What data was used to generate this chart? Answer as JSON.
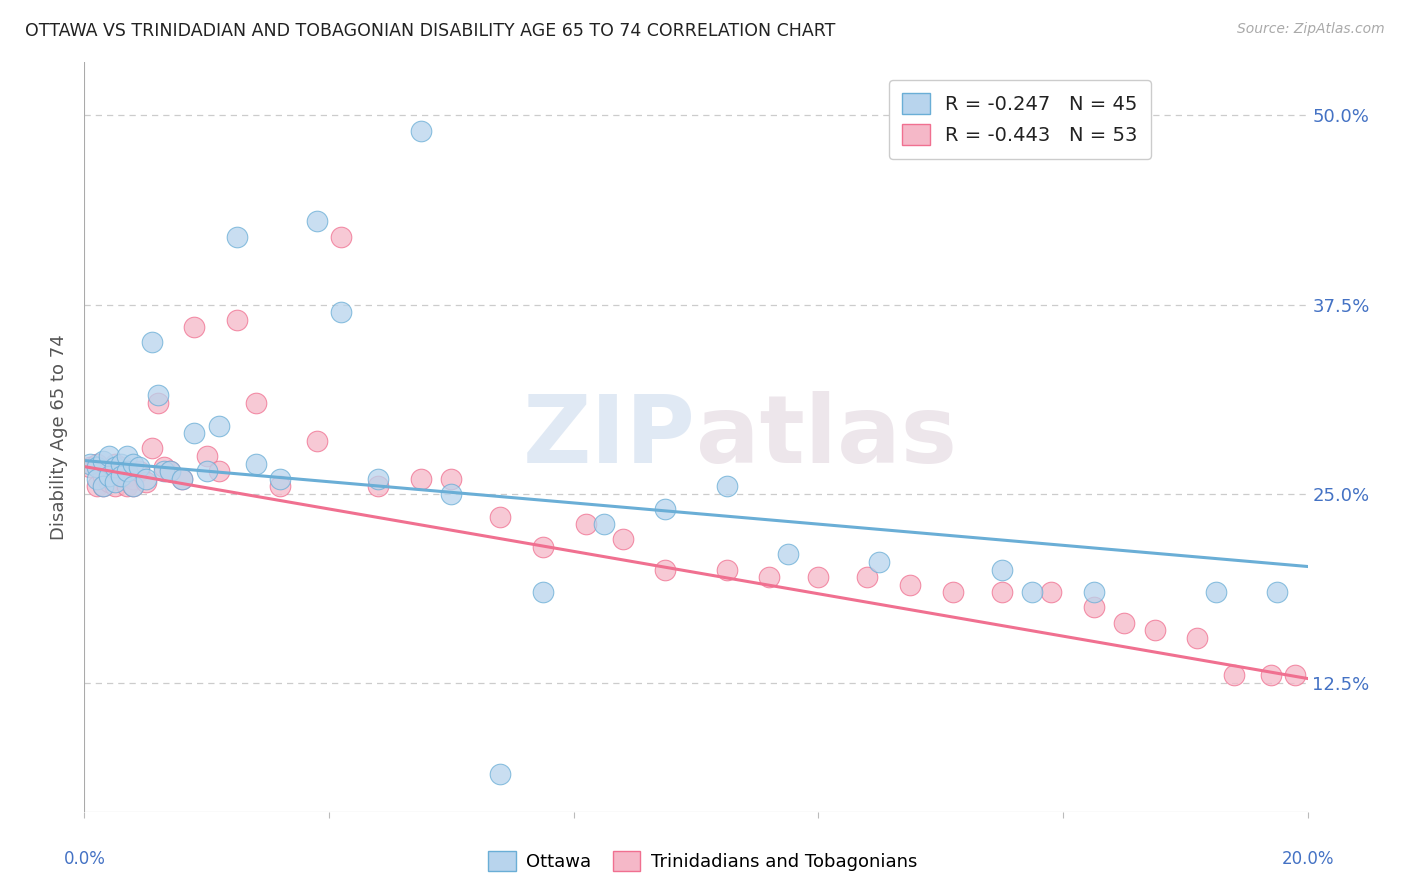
{
  "title": "OTTAWA VS TRINIDADIAN AND TOBAGONIAN DISABILITY AGE 65 TO 74 CORRELATION CHART",
  "source": "Source: ZipAtlas.com",
  "ylabel": "Disability Age 65 to 74",
  "ytick_values": [
    0.125,
    0.25,
    0.375,
    0.5
  ],
  "xmin": 0.0,
  "xmax": 0.2,
  "ymin": 0.04,
  "ymax": 0.535,
  "legend_label_blue": "R = -0.247   N = 45",
  "legend_label_pink": "R = -0.443   N = 53",
  "watermark_zip": "ZIP",
  "watermark_atlas": "atlas",
  "blue_color": "#6aaed6",
  "pink_color": "#f07090",
  "blue_fill": "#b8d4ed",
  "pink_fill": "#f5b8c8",
  "blue_line_x0": 0.0,
  "blue_line_x1": 0.2,
  "blue_line_y0": 0.272,
  "blue_line_y1": 0.202,
  "pink_line_x0": 0.0,
  "pink_line_x1": 0.2,
  "pink_line_y0": 0.268,
  "pink_line_y1": 0.128,
  "ottawa_x": [
    0.001,
    0.002,
    0.002,
    0.003,
    0.003,
    0.004,
    0.004,
    0.005,
    0.005,
    0.006,
    0.006,
    0.007,
    0.007,
    0.008,
    0.008,
    0.009,
    0.01,
    0.011,
    0.012,
    0.013,
    0.014,
    0.016,
    0.018,
    0.02,
    0.022,
    0.025,
    0.028,
    0.032,
    0.038,
    0.042,
    0.048,
    0.055,
    0.06,
    0.068,
    0.075,
    0.085,
    0.095,
    0.105,
    0.115,
    0.13,
    0.15,
    0.155,
    0.165,
    0.185,
    0.195
  ],
  "ottawa_y": [
    0.27,
    0.268,
    0.26,
    0.272,
    0.255,
    0.275,
    0.262,
    0.268,
    0.258,
    0.27,
    0.262,
    0.275,
    0.265,
    0.27,
    0.255,
    0.268,
    0.26,
    0.35,
    0.315,
    0.265,
    0.265,
    0.26,
    0.29,
    0.265,
    0.295,
    0.42,
    0.27,
    0.26,
    0.43,
    0.37,
    0.26,
    0.49,
    0.25,
    0.065,
    0.185,
    0.23,
    0.24,
    0.255,
    0.21,
    0.205,
    0.2,
    0.185,
    0.185,
    0.185,
    0.185
  ],
  "trini_x": [
    0.001,
    0.002,
    0.002,
    0.003,
    0.003,
    0.004,
    0.004,
    0.005,
    0.005,
    0.006,
    0.006,
    0.007,
    0.007,
    0.008,
    0.008,
    0.009,
    0.01,
    0.011,
    0.012,
    0.013,
    0.014,
    0.016,
    0.018,
    0.02,
    0.022,
    0.025,
    0.028,
    0.032,
    0.038,
    0.042,
    0.048,
    0.055,
    0.06,
    0.068,
    0.075,
    0.082,
    0.088,
    0.095,
    0.105,
    0.112,
    0.12,
    0.128,
    0.135,
    0.142,
    0.15,
    0.158,
    0.165,
    0.17,
    0.175,
    0.182,
    0.188,
    0.194,
    0.198
  ],
  "trini_y": [
    0.268,
    0.255,
    0.27,
    0.262,
    0.255,
    0.265,
    0.258,
    0.27,
    0.255,
    0.262,
    0.268,
    0.255,
    0.262,
    0.26,
    0.255,
    0.265,
    0.258,
    0.28,
    0.31,
    0.268,
    0.265,
    0.26,
    0.36,
    0.275,
    0.265,
    0.365,
    0.31,
    0.255,
    0.285,
    0.42,
    0.255,
    0.26,
    0.26,
    0.235,
    0.215,
    0.23,
    0.22,
    0.2,
    0.2,
    0.195,
    0.195,
    0.195,
    0.19,
    0.185,
    0.185,
    0.185,
    0.175,
    0.165,
    0.16,
    0.155,
    0.13,
    0.13,
    0.13
  ],
  "grid_color": "#cccccc",
  "axis_label_color": "#4472c4",
  "background_color": "#ffffff"
}
